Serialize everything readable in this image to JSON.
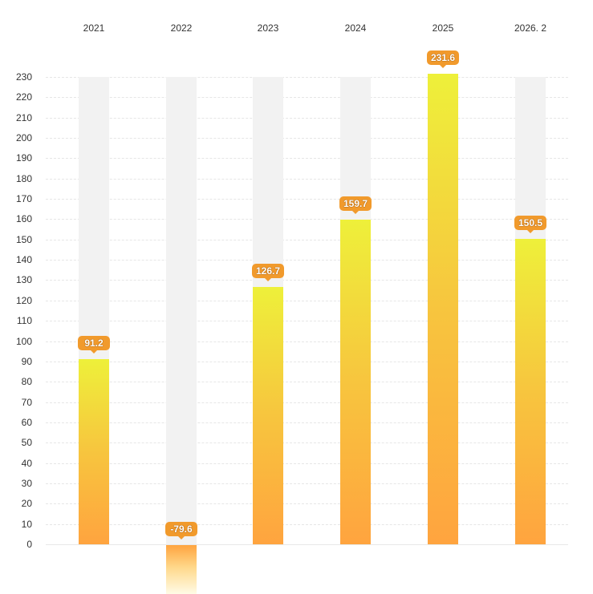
{
  "chart_data": {
    "type": "bar",
    "title": "",
    "xlabel": "",
    "ylabel": "",
    "categories": [
      "2021",
      "2022",
      "2023",
      "2024",
      "2025",
      "2026. 2"
    ],
    "values": [
      91.2,
      -79.6,
      126.7,
      159.7,
      231.6,
      150.5
    ],
    "value_labels": [
      "91.2",
      "-79.6",
      "126.7",
      "159.7",
      "231.6",
      "150.5"
    ],
    "ylim": [
      0,
      230
    ],
    "yticks": [
      "230",
      "220",
      "210",
      "200",
      "190",
      "180",
      "170",
      "160",
      "150",
      "140",
      "130",
      "120",
      "110",
      "100",
      "90",
      "80",
      "70",
      "60",
      "50",
      "40",
      "30",
      "20",
      "10",
      "0"
    ],
    "grid": true,
    "legend": null,
    "x_axis_position": "top",
    "colors": {
      "bar_top": "#eef03a",
      "bar_bottom": "#ffa43f",
      "track": "#f2f2f2",
      "badge": "#f19a2c"
    }
  }
}
